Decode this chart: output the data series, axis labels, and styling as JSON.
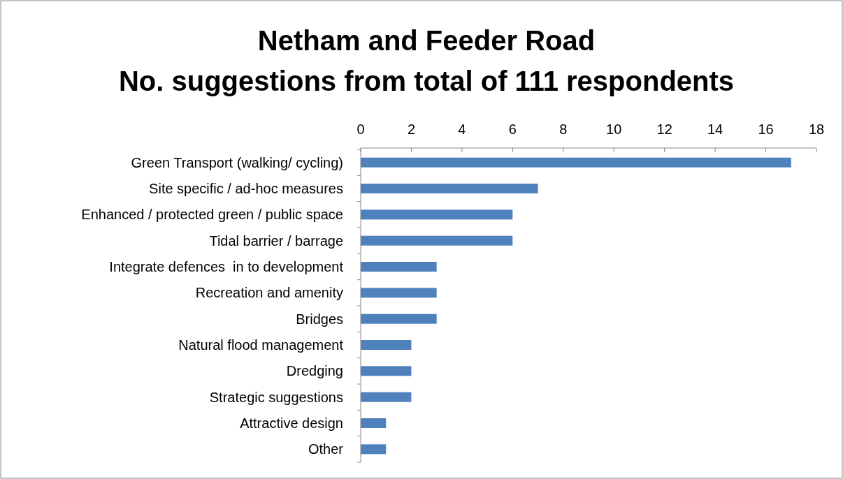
{
  "chart_data": {
    "type": "bar",
    "orientation": "horizontal",
    "title": "Netham and Feeder Road\nNo. suggestions from total of 111 respondents",
    "categories": [
      "Green Transport (walking/ cycling)",
      "Site specific / ad-hoc measures",
      "Enhanced / protected green / public space",
      "Tidal barrier / barrage",
      "Integrate defences  in to development",
      "Recreation and amenity",
      "Bridges",
      "Natural flood management",
      "Dredging",
      "Strategic suggestions",
      "Attractive design",
      "Other"
    ],
    "values": [
      17,
      7,
      6,
      6,
      3,
      3,
      3,
      2,
      2,
      2,
      1,
      1
    ],
    "color": "#4f81bd",
    "xlim": [
      0,
      18
    ],
    "xticks": [
      0,
      2,
      4,
      6,
      8,
      10,
      12,
      14,
      16,
      18
    ],
    "grid": false
  }
}
